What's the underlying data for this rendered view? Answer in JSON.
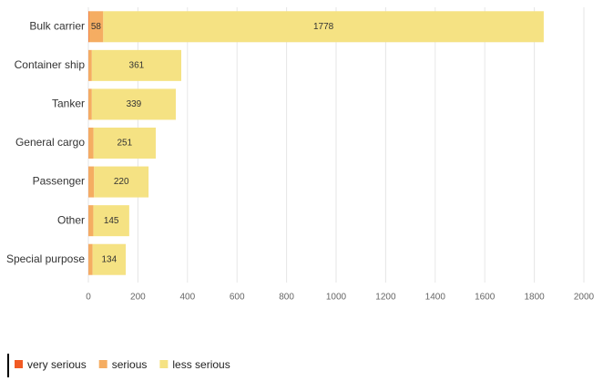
{
  "chart_data": {
    "type": "stacked-bar-horizontal",
    "categories": [
      "Bulk carrier",
      "Container ship",
      "Tanker",
      "General cargo",
      "Passenger",
      "Other",
      "Special purpose"
    ],
    "series": [
      {
        "name": "very serious",
        "color": "#f15a24",
        "values": [
          2,
          1,
          1,
          1,
          1,
          1,
          1
        ]
      },
      {
        "name": "serious",
        "color": "#f5ad62",
        "values": [
          58,
          13,
          13,
          20,
          22,
          19,
          16
        ]
      },
      {
        "name": "less serious",
        "color": "#f5e283",
        "values": [
          1778,
          361,
          339,
          251,
          220,
          145,
          134
        ]
      }
    ],
    "xlim": [
      0,
      2000
    ],
    "xticks": [
      0,
      200,
      400,
      600,
      800,
      1000,
      1200,
      1400,
      1600,
      1800,
      2000
    ],
    "grid": true,
    "legend": "bottom-left"
  }
}
